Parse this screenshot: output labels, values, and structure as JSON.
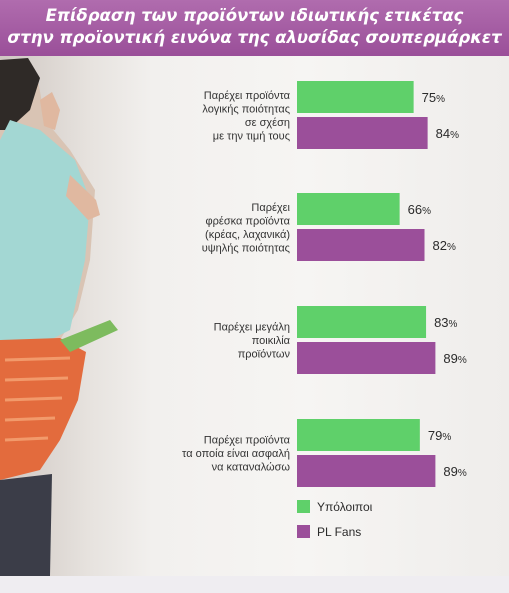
{
  "header": {
    "title_line1": "Επίδραση των προϊόντων ιδιωτικής ετικέτας",
    "title_line2": "στην προϊοντική εινόνα της αλυσίδας σουπερμάρκετ"
  },
  "colors": {
    "title_bg": "#9d539c",
    "others": "#5fd06a",
    "pl_fans": "#9b4f9a"
  },
  "chart_data": {
    "type": "bar",
    "orientation": "horizontal",
    "title": "Επίδραση των προϊόντων ιδιωτικής ετικέτας στην προϊοντική εινόνα της αλυσίδας σουπερμάρκετ",
    "categories": [
      [
        "Παρέχει προϊόντα",
        "λογικής ποιότητας",
        "σε σχέση",
        "με την τιμή τους"
      ],
      [
        "Παρέχει",
        "φρέσκα προϊόντα",
        "(κρέας, λαχανικά)",
        "υψηλής ποιότητας"
      ],
      [
        "Παρέχει μεγάλη",
        "ποικιλία",
        "προϊόντων"
      ],
      [
        "Παρέχει προϊόντα",
        "τα οποία είναι ασφαλή",
        "να καταναλώσω"
      ]
    ],
    "unit": "%",
    "series": [
      {
        "name": "Υπόλοιποι",
        "color": "#5fd06a",
        "values": [
          75,
          66,
          83,
          79
        ]
      },
      {
        "name": "PL Fans",
        "color": "#9b4f9a",
        "values": [
          84,
          82,
          89,
          89
        ]
      }
    ],
    "xlim": [
      0,
      100
    ],
    "grid": false,
    "legend": "bottom"
  }
}
